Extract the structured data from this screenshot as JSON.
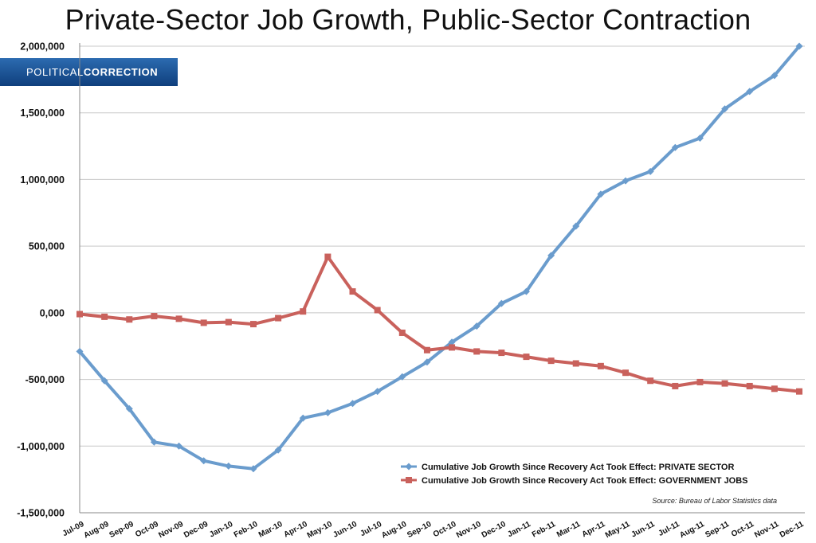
{
  "title": "Private-Sector Job Growth, Public-Sector Contraction",
  "brand": {
    "part1": "POLITICAL",
    "part2": "CORRECTION"
  },
  "source": "Source: Bureau of Labor Statistics data",
  "colors": {
    "private": "#6a9ccd",
    "government": "#c9615c",
    "grid": "#c8c8c8",
    "brand": "#1f5596"
  },
  "chart_data": {
    "type": "line",
    "x": [
      "Jul-09",
      "Aug-09",
      "Sep-09",
      "Oct-09",
      "Nov-09",
      "Dec-09",
      "Jan-10",
      "Feb-10",
      "Mar-10",
      "Apr-10",
      "May-10",
      "Jun-10",
      "Jul-10",
      "Aug-10",
      "Sep-10",
      "Oct-10",
      "Nov-10",
      "Dec-10",
      "Jan-11",
      "Feb-11",
      "Mar-11",
      "Apr-11",
      "May-11",
      "Jun-11",
      "Jul-11",
      "Aug-11",
      "Sep-11",
      "Oct-11",
      "Nov-11",
      "Dec-11"
    ],
    "y_ticks": [
      2000000,
      1500000,
      1000000,
      500000,
      0,
      -500000,
      -1000000,
      -1500000
    ],
    "y_tick_labels": [
      "2,000,000",
      "1,500,000",
      "1,000,000",
      "500,000",
      "0,000",
      "-500,000",
      "-1,000,000",
      "-1,500,000"
    ],
    "ylim": [
      -1500000,
      2000000
    ],
    "grid": true,
    "legend_position": "bottom-right",
    "series": [
      {
        "name": "Cumulative Job Growth Since Recovery Act Took Effect: PRIVATE SECTOR",
        "color": "#6a9ccd",
        "marker": "diamond",
        "values": [
          -290000,
          -510000,
          -720000,
          -970000,
          -1000000,
          -1110000,
          -1150000,
          -1170000,
          -1030000,
          -790000,
          -750000,
          -680000,
          -590000,
          -480000,
          -370000,
          -220000,
          -100000,
          70000,
          160000,
          430000,
          650000,
          890000,
          990000,
          1060000,
          1240000,
          1310000,
          1530000,
          1660000,
          1780000,
          2000000
        ]
      },
      {
        "name": "Cumulative Job Growth Since Recovery Act Took Effect: GOVERNMENT JOBS",
        "color": "#c9615c",
        "marker": "square",
        "values": [
          -10000,
          -30000,
          -50000,
          -25000,
          -45000,
          -75000,
          -70000,
          -85000,
          -40000,
          10000,
          420000,
          160000,
          20000,
          -150000,
          -280000,
          -260000,
          -290000,
          -300000,
          -330000,
          -360000,
          -380000,
          -400000,
          -450000,
          -510000,
          -550000,
          -520000,
          -530000,
          -550000,
          -570000,
          -590000
        ]
      }
    ]
  }
}
